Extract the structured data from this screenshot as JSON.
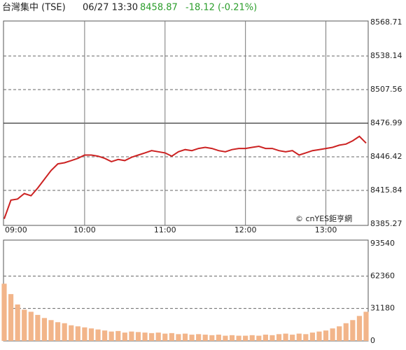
{
  "header": {
    "name": "台灣集中 (TSE)",
    "time": "06/27 13:30",
    "price": "8458.87",
    "change": "-18.12 (-0.21%)"
  },
  "chart_data": [
    {
      "type": "line",
      "color": "#cc2222",
      "grid": true,
      "reference": 8476.99,
      "watermark": "© cnYES鉅亨網",
      "categories": [
        "09:00",
        null,
        null,
        null,
        null,
        null,
        null,
        null,
        null,
        null,
        null,
        null,
        "10:00",
        null,
        null,
        null,
        null,
        null,
        null,
        null,
        null,
        null,
        null,
        null,
        "11:00",
        null,
        null,
        null,
        null,
        null,
        null,
        null,
        null,
        null,
        null,
        null,
        "12:00",
        null,
        null,
        null,
        null,
        null,
        null,
        null,
        null,
        null,
        null,
        null,
        "13:00",
        null,
        null,
        null,
        null,
        null,
        null
      ],
      "values": [
        8390,
        8407,
        8408,
        8413,
        8411,
        8418,
        8426,
        8434,
        8440,
        8441,
        8443,
        8445,
        8448,
        8448,
        8447,
        8445,
        8442,
        8444,
        8443,
        8446,
        8448,
        8450,
        8452,
        8451,
        8450,
        8447,
        8451,
        8453,
        8452,
        8454,
        8455,
        8454,
        8452,
        8451,
        8453,
        8454,
        8454,
        8455,
        8456,
        8454,
        8454,
        8452,
        8451,
        8452,
        8448,
        8450,
        8452,
        8453,
        8454,
        8455,
        8457,
        8458,
        8461,
        8465,
        8458.87
      ],
      "ylim": [
        8385.27,
        8568.71
      ],
      "yticks": [
        8385.27,
        8415.84,
        8446.42,
        8476.99,
        8507.56,
        8538.14,
        8568.71
      ]
    },
    {
      "type": "bar",
      "color": "#f2b58a",
      "grid": true,
      "values": [
        55000,
        45000,
        35000,
        30000,
        28000,
        25000,
        22000,
        20000,
        18000,
        17000,
        15000,
        14000,
        13000,
        12000,
        11000,
        10000,
        9000,
        9500,
        8000,
        9000,
        8500,
        8000,
        7500,
        8000,
        7000,
        7500,
        6500,
        7000,
        6000,
        6500,
        6000,
        5500,
        6000,
        5000,
        5500,
        5000,
        5000,
        5500,
        5000,
        6000,
        5500,
        6500,
        7000,
        6000,
        7000,
        6500,
        8000,
        9000,
        10000,
        12000,
        14000,
        17000,
        20000,
        24000,
        28000
      ],
      "ylim": [
        0,
        93540
      ],
      "yticks": [
        0,
        31180,
        62360,
        93540
      ]
    }
  ]
}
